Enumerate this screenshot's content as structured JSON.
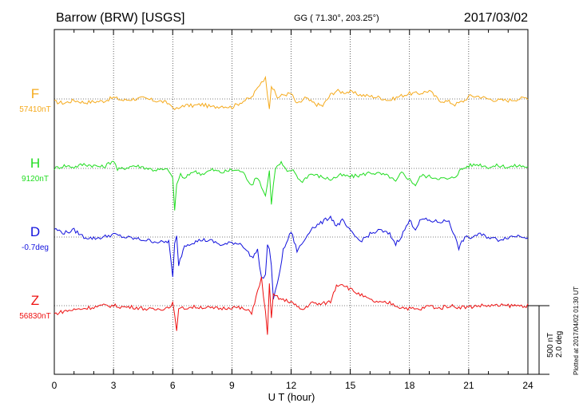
{
  "header": {
    "station": "Barrow (BRW)  [USGS]",
    "coords": "GG ( 71.30°, 203.25°)",
    "date": "2017/03/02"
  },
  "footer": {
    "plotted": "Plotted at 2017/04/02 01:30 UT"
  },
  "chart_data": {
    "type": "line",
    "title": "",
    "xlabel": "U T (hour)",
    "xlim": [
      0,
      24
    ],
    "xticks": [
      0,
      3,
      6,
      9,
      12,
      15,
      18,
      21,
      24
    ],
    "xtick_labels": [
      "0",
      "3",
      "6",
      "9",
      "12",
      "15",
      "18",
      "21",
      "24"
    ],
    "grid": "dotted",
    "scale": {
      "nT": "500 nT",
      "deg": "2.0 deg"
    },
    "series": [
      {
        "name": "F",
        "baseline_label": "57410nT",
        "color": "#f5aa1c",
        "x": [
          0,
          0.5,
          1,
          1.5,
          2,
          2.5,
          3,
          3.5,
          4,
          4.5,
          5,
          5.5,
          5.8,
          6,
          6.1,
          6.2,
          6.3,
          6.5,
          7,
          7.5,
          8,
          8.5,
          9,
          9.5,
          10,
          10.3,
          10.5,
          10.7,
          10.8,
          10.9,
          11,
          11.3,
          11.6,
          12,
          12.3,
          12.5,
          12.7,
          13,
          13.3,
          13.6,
          14,
          14.3,
          14.6,
          15,
          15.5,
          16,
          16.5,
          17,
          17.5,
          18,
          18.5,
          19,
          19.5,
          20,
          20.3,
          20.5,
          20.8,
          21,
          21.5,
          22,
          22.5,
          23,
          23.5,
          24
        ],
        "y": [
          -20,
          -30,
          -10,
          -25,
          -20,
          -15,
          10,
          -10,
          0,
          5,
          -10,
          -20,
          -35,
          -50,
          -90,
          -60,
          -80,
          -45,
          -50,
          -40,
          -60,
          -50,
          -60,
          -20,
          10,
          80,
          130,
          150,
          40,
          -60,
          100,
          10,
          30,
          40,
          -40,
          -20,
          10,
          -20,
          -40,
          -50,
          30,
          60,
          50,
          50,
          30,
          20,
          10,
          -10,
          20,
          40,
          40,
          60,
          -10,
          -20,
          -40,
          -30,
          -10,
          20,
          20,
          0,
          -10,
          -10,
          0,
          10
        ]
      },
      {
        "name": "H",
        "baseline_label": "9120nT",
        "color": "#22dd22",
        "x": [
          0,
          0.5,
          1,
          1.5,
          2,
          2.5,
          3,
          3.2,
          3.5,
          4,
          4.5,
          5,
          5.5,
          5.8,
          6,
          6.1,
          6.2,
          6.4,
          6.6,
          7,
          7.5,
          8,
          8.5,
          9,
          9.5,
          10,
          10.3,
          10.5,
          10.7,
          10.9,
          11,
          11.2,
          11.5,
          11.8,
          12,
          12.2,
          12.5,
          12.8,
          13,
          13.5,
          14,
          14.5,
          15,
          15.5,
          16,
          16.5,
          17,
          17.3,
          17.6,
          18,
          18.3,
          18.6,
          19,
          19.5,
          20,
          20.3,
          20.6,
          21,
          21.5,
          22,
          22.5,
          23,
          23.5,
          24
        ],
        "y": [
          0,
          20,
          10,
          30,
          20,
          10,
          60,
          -10,
          0,
          20,
          10,
          -10,
          -10,
          -10,
          -80,
          -300,
          -120,
          -40,
          -80,
          -20,
          -40,
          -10,
          -30,
          -10,
          -20,
          -120,
          -60,
          -130,
          -200,
          -20,
          -250,
          0,
          40,
          -30,
          -10,
          -30,
          -100,
          -60,
          -40,
          -60,
          -80,
          -50,
          -60,
          -50,
          -30,
          -40,
          -60,
          -100,
          -30,
          -80,
          -120,
          -50,
          -60,
          -70,
          -80,
          -60,
          -10,
          20,
          30,
          10,
          20,
          10,
          20,
          10
        ]
      },
      {
        "name": "D",
        "baseline_label": "-0.7deg",
        "color": "#1111dd",
        "x": [
          0,
          0.5,
          1,
          1.5,
          2,
          2.5,
          3,
          3.5,
          4,
          4.5,
          5,
          5.5,
          5.8,
          6,
          6.1,
          6.2,
          6.3,
          6.6,
          7,
          7.5,
          8,
          8.5,
          9,
          9.5,
          10,
          10.3,
          10.5,
          10.7,
          10.8,
          10.9,
          11,
          11.1,
          11.3,
          11.6,
          12,
          12.3,
          12.6,
          13,
          13.5,
          14,
          14.3,
          14.6,
          15,
          15.5,
          16,
          16.5,
          17,
          17.3,
          17.6,
          18,
          18.3,
          18.6,
          19,
          19.5,
          20,
          20.3,
          20.5,
          20.8,
          21,
          21.5,
          22,
          22.5,
          23,
          23.5,
          24
        ],
        "y": [
          60,
          30,
          50,
          0,
          -10,
          0,
          20,
          0,
          -10,
          -20,
          -30,
          -40,
          -30,
          -300,
          -50,
          0,
          -200,
          -60,
          -40,
          -20,
          -30,
          -60,
          -40,
          -50,
          -150,
          -100,
          -300,
          -280,
          -50,
          -100,
          -200,
          -450,
          -350,
          -100,
          40,
          -100,
          -40,
          60,
          100,
          150,
          80,
          120,
          40,
          -30,
          20,
          50,
          20,
          -50,
          10,
          120,
          60,
          130,
          120,
          110,
          120,
          0,
          -80,
          0,
          -10,
          20,
          0,
          -20,
          0,
          10,
          0
        ]
      },
      {
        "name": "Z",
        "baseline_label": "56830nT",
        "color": "#ee1111",
        "x": [
          0,
          0.5,
          1,
          1.5,
          2,
          2.5,
          3,
          3.5,
          4,
          4.5,
          5,
          5.5,
          5.8,
          6,
          6.1,
          6.2,
          6.3,
          6.5,
          7,
          7.5,
          8,
          8.5,
          9,
          9.5,
          10,
          10.3,
          10.5,
          10.7,
          10.8,
          10.9,
          11,
          11.1,
          11.3,
          11.6,
          12,
          12.3,
          12.6,
          13,
          13.5,
          14,
          14.3,
          14.6,
          15,
          15.5,
          16,
          16.5,
          17,
          17.5,
          18,
          18.5,
          19,
          19.5,
          20,
          20.5,
          21,
          21.5,
          22,
          22.5,
          23,
          23.5,
          24
        ],
        "y": [
          -60,
          -40,
          -30,
          -20,
          -10,
          0,
          0,
          -10,
          -10,
          -20,
          -30,
          -20,
          -10,
          20,
          -80,
          -170,
          -30,
          -20,
          -10,
          -10,
          -20,
          -20,
          -10,
          -20,
          -50,
          100,
          200,
          -50,
          -200,
          150,
          -100,
          80,
          60,
          40,
          30,
          -10,
          -30,
          20,
          10,
          30,
          150,
          160,
          120,
          80,
          40,
          20,
          20,
          -10,
          -20,
          -30,
          0,
          -20,
          0,
          -10,
          -10,
          0,
          0,
          0,
          0,
          0,
          0
        ]
      }
    ]
  }
}
